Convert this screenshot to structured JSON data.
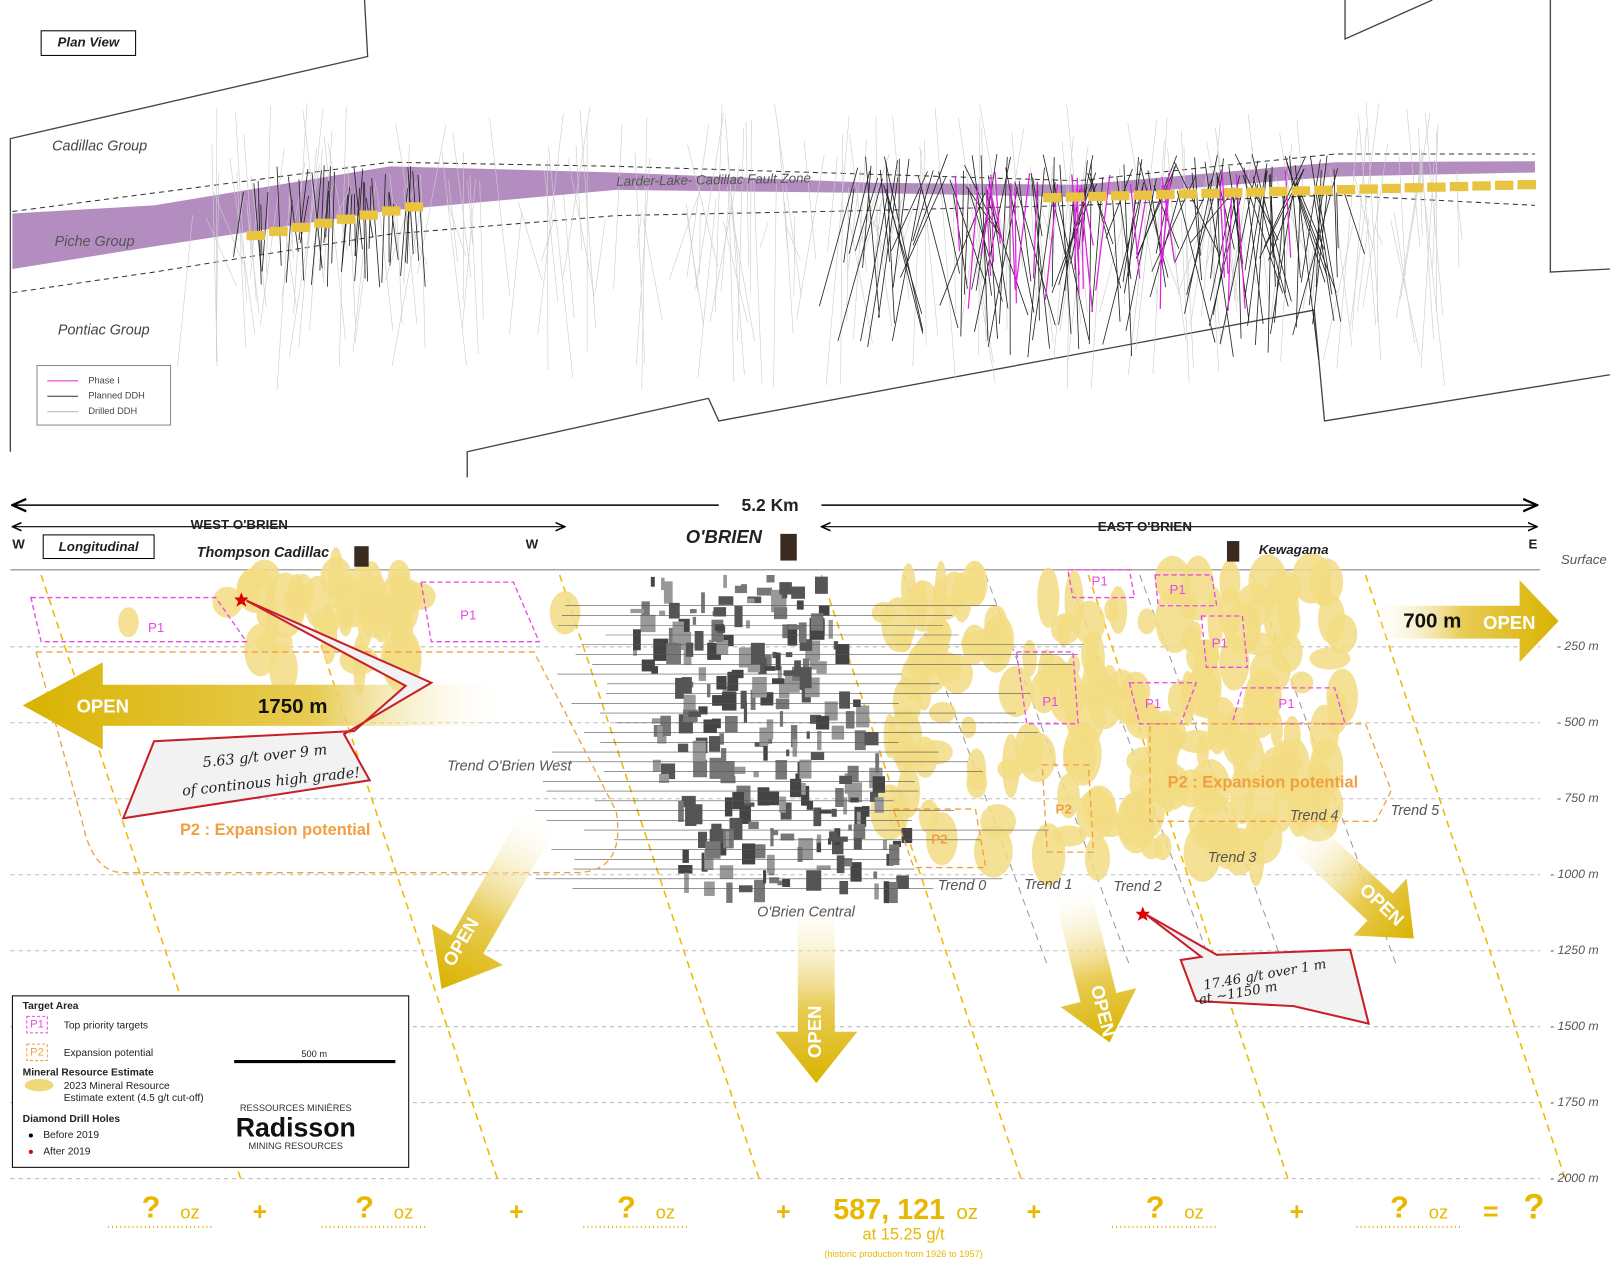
{
  "plan_view": {
    "title": "Plan View",
    "groups": [
      "Cadillac Group",
      "Piche Group",
      "Pontiac Group"
    ],
    "fault_zone": "Larder-Lake- Cadillac Fault Zone",
    "legend": [
      "Phase I",
      "Planned DDH",
      "Drilled DDH"
    ]
  },
  "longitudinal": {
    "title": "Longitudinal",
    "total_length": "5.2 Km",
    "west_label": "WEST O'BRIEN",
    "east_label": "EAST O'BRIEN",
    "compass": [
      "W",
      "W",
      "E"
    ],
    "sites": [
      "Thompson Cadillac",
      "O'BRIEN",
      "Kewagama"
    ],
    "surface": "Surface",
    "depths": [
      "- 250 m",
      "- 500 m",
      "- 750 m",
      "- 1000 m",
      "- 1250 m",
      "- 1500 m",
      "- 1750 m",
      "- 2000 m"
    ],
    "p1_labels": [
      "P1",
      "P1",
      "P1",
      "P1",
      "P1",
      "P1",
      "P1",
      "P1"
    ],
    "p2_labels": [
      "P2",
      "P2"
    ],
    "expansion_labels": [
      "P2 : Expansion potential",
      "P2 : Expansion potential"
    ],
    "open_labels": [
      "OPEN",
      "OPEN",
      "OPEN",
      "OPEN",
      "OPEN",
      "OPEN"
    ],
    "extents": [
      "1750 m",
      "700 m"
    ],
    "trends": [
      "Trend O'Brien West",
      "O'Brien Central",
      "Trend 0",
      "Trend 1",
      "Trend 2",
      "Trend 3",
      "Trend 4",
      "Trend 5"
    ],
    "callouts": [
      {
        "lines": [
          "5.63 g/t over 9 m",
          "of continous high grade!"
        ]
      },
      {
        "lines": [
          "17.46 g/t over 1 m",
          "at ~1150 m"
        ]
      }
    ]
  },
  "legend": {
    "target_title": "Target Area",
    "p1": "P1",
    "p1_text": "Top priority targets",
    "p2": "P2",
    "p2_text": "Expansion potential",
    "scale": "500 m",
    "resource_title": "Mineral Resource Estimate",
    "resource_lines": [
      "2023 Mineral Resource",
      "Estimate extent (4.5  g/t cut-off)"
    ],
    "drill_title": "Diamond Drill Holes",
    "drill_items": [
      "Before 2019",
      "After 2019"
    ]
  },
  "logo": {
    "top": "RESSOURCES MINIÈRES",
    "name": "Radisson",
    "bottom": "MINING RESOURCES"
  },
  "totals": {
    "unknown": [
      {
        "value": "?",
        "unit": "oz"
      },
      {
        "value": "?",
        "unit": "oz"
      },
      {
        "value": "?",
        "unit": "oz"
      },
      {
        "value": "?",
        "unit": "oz"
      },
      {
        "value": "?",
        "unit": "oz"
      }
    ],
    "plus": [
      "+",
      "+",
      "+",
      "+",
      "+"
    ],
    "known": {
      "value": "587, 121",
      "unit": "oz",
      "grade": "at 15.25 g/t",
      "note": "(historic production from 1926 to 1957)"
    },
    "equals": "=",
    "result": "?"
  }
}
